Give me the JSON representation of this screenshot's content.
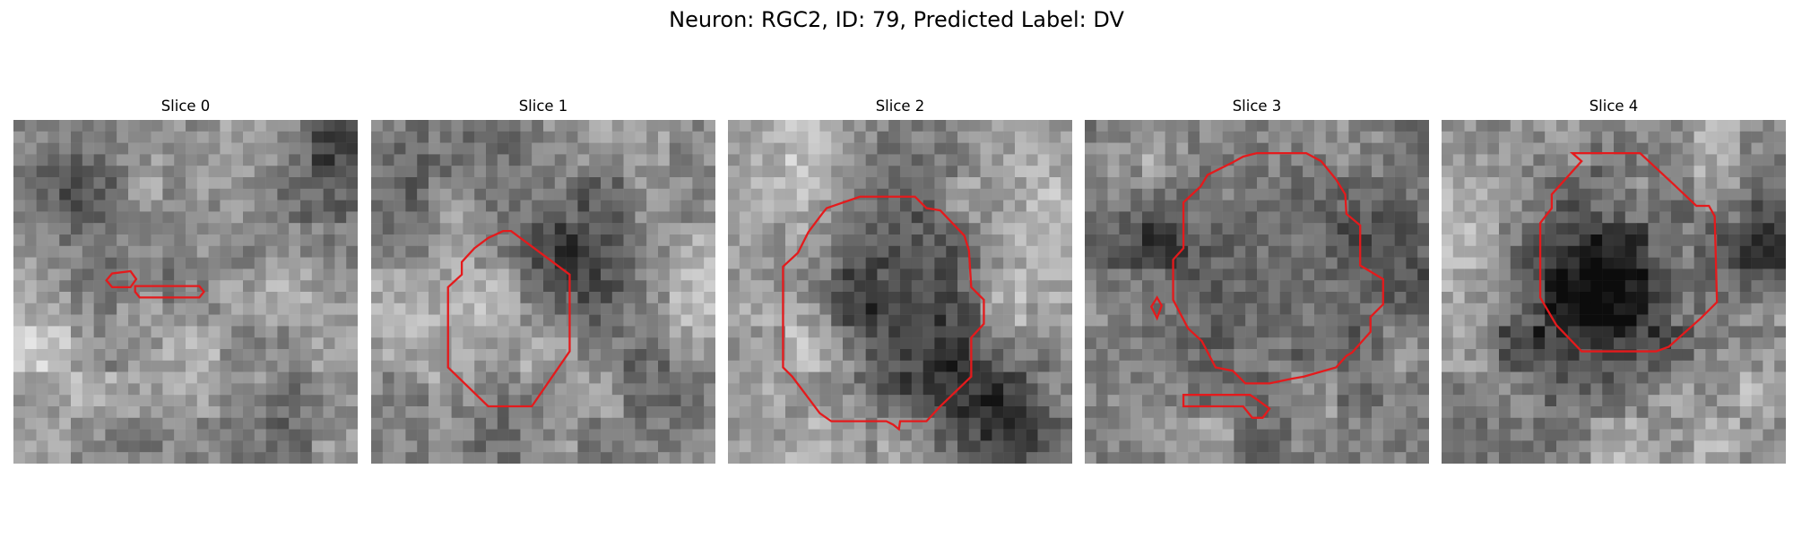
{
  "figure": {
    "title": "Neuron: RGC2, ID: 79, Predicted Label: DV"
  },
  "panels": [
    {
      "title": "Slice 0"
    },
    {
      "title": "Slice 1"
    },
    {
      "title": "Slice 2"
    },
    {
      "title": "Slice 3"
    },
    {
      "title": "Slice 4"
    }
  ],
  "colors": {
    "contour": "#e41a1c",
    "image_colormap": "grayscale"
  }
}
